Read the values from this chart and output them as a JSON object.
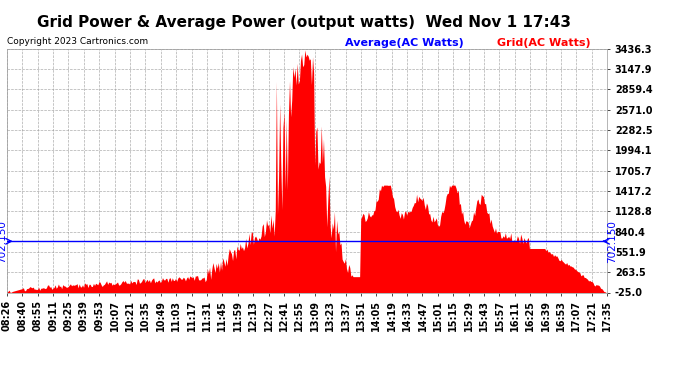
{
  "title": "Grid Power & Average Power (output watts)  Wed Nov 1 17:43",
  "copyright": "Copyright 2023 Cartronics.com",
  "legend_items": [
    "Average(AC Watts)",
    "Grid(AC Watts)"
  ],
  "legend_colors": [
    "blue",
    "red"
  ],
  "average_value": 702.15,
  "ylim": [
    -25.0,
    3436.3
  ],
  "yticks": [
    3436.3,
    3147.9,
    2859.4,
    2571.0,
    2282.5,
    1994.1,
    1705.7,
    1417.2,
    1128.8,
    840.4,
    551.9,
    263.5,
    -25.0
  ],
  "xtick_labels": [
    "08:26",
    "08:40",
    "08:55",
    "09:11",
    "09:25",
    "09:39",
    "09:53",
    "10:07",
    "10:21",
    "10:35",
    "10:49",
    "11:03",
    "11:17",
    "11:31",
    "11:45",
    "11:59",
    "12:13",
    "12:27",
    "12:41",
    "12:55",
    "13:09",
    "13:23",
    "13:37",
    "13:51",
    "14:05",
    "14:19",
    "14:33",
    "14:47",
    "15:01",
    "15:15",
    "15:29",
    "15:43",
    "15:57",
    "16:11",
    "16:25",
    "16:39",
    "16:53",
    "17:07",
    "17:21",
    "17:35"
  ],
  "background_color": "#ffffff",
  "grid_color": "#999999",
  "fill_color": "red",
  "line_color": "blue",
  "title_fontsize": 11,
  "annotation_fontsize": 7.5,
  "tick_fontsize": 7
}
